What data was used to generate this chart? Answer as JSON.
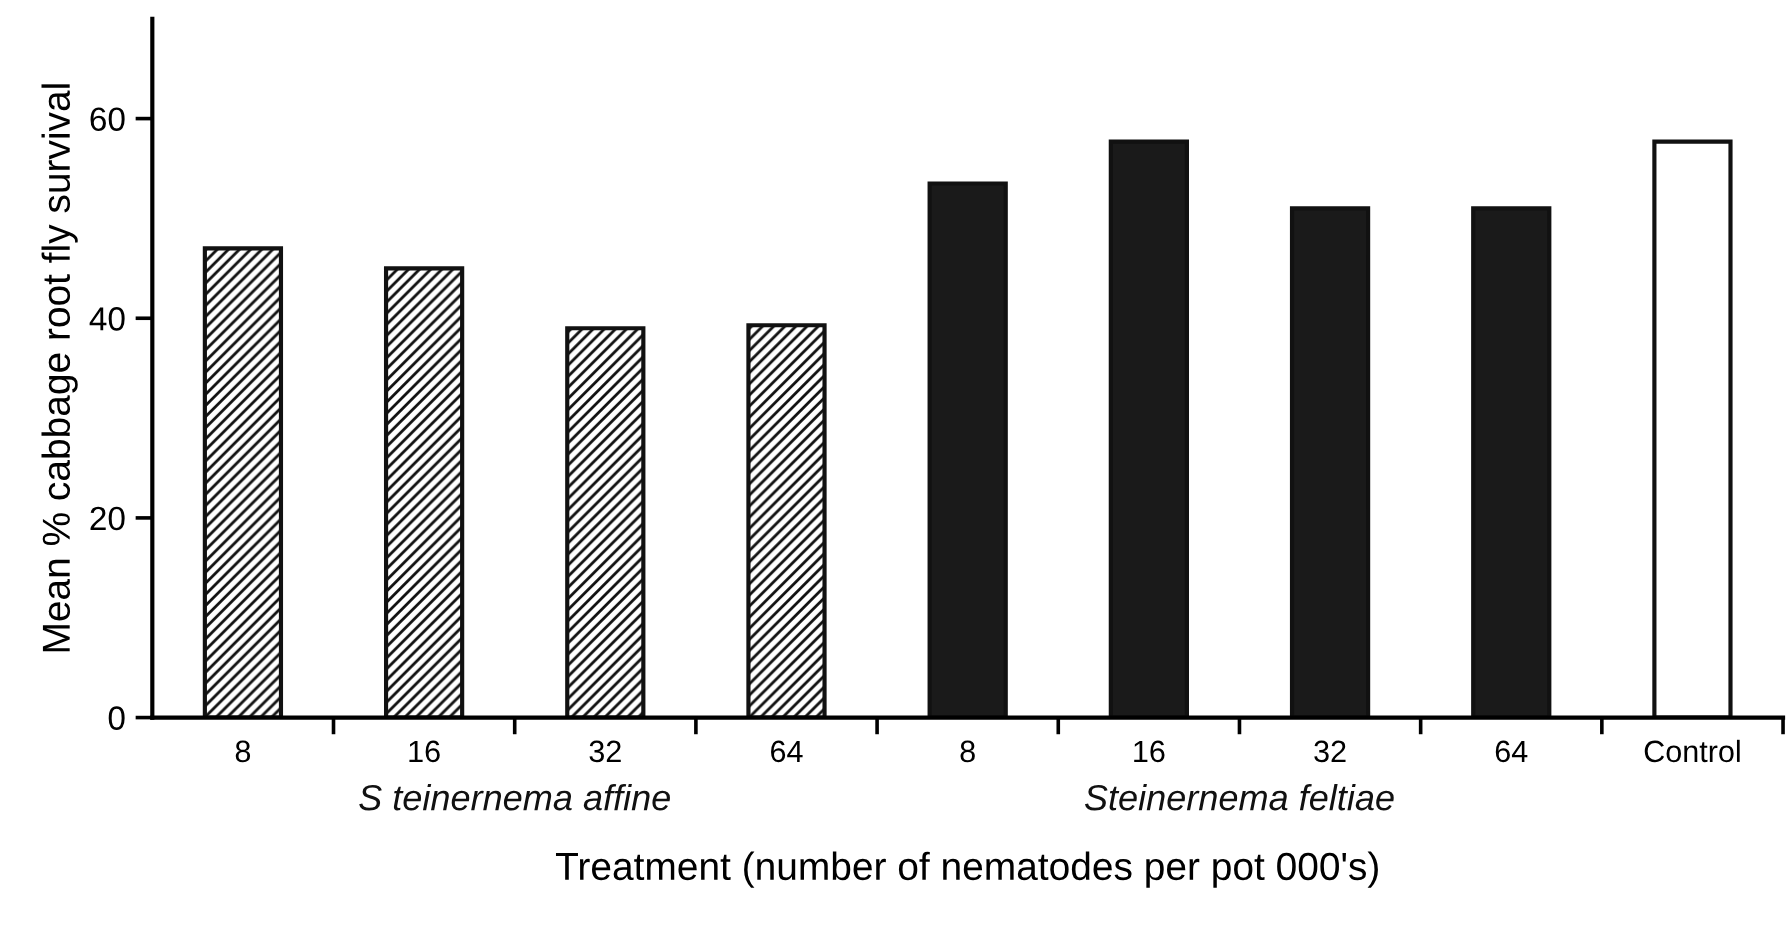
{
  "chart_data": {
    "type": "bar",
    "xlabel": "Treatment (number of nematodes per pot 000's)",
    "ylabel": "Mean % cabbage root fly survival",
    "categories": [
      "8",
      "16",
      "32",
      "64",
      "8",
      "16",
      "32",
      "64",
      "Control"
    ],
    "series": [
      {
        "name": "S teinernema affine",
        "color": "#111111",
        "values": [
          47,
          45,
          39,
          39.3,
          null,
          null,
          null,
          null,
          null
        ]
      },
      {
        "name": "Steinernema feltiae",
        "color": "#1a1a1a",
        "values": [
          null,
          null,
          null,
          null,
          53.5,
          57.7,
          51,
          51,
          null
        ]
      },
      {
        "color": "#ffffff",
        "values": [
          null,
          null,
          null,
          null,
          null,
          null,
          null,
          null,
          57.7
        ]
      }
    ],
    "ylim": [
      0,
      70
    ],
    "yticks": [
      0,
      20,
      40,
      60
    ],
    "grid": false,
    "legend": false
  }
}
